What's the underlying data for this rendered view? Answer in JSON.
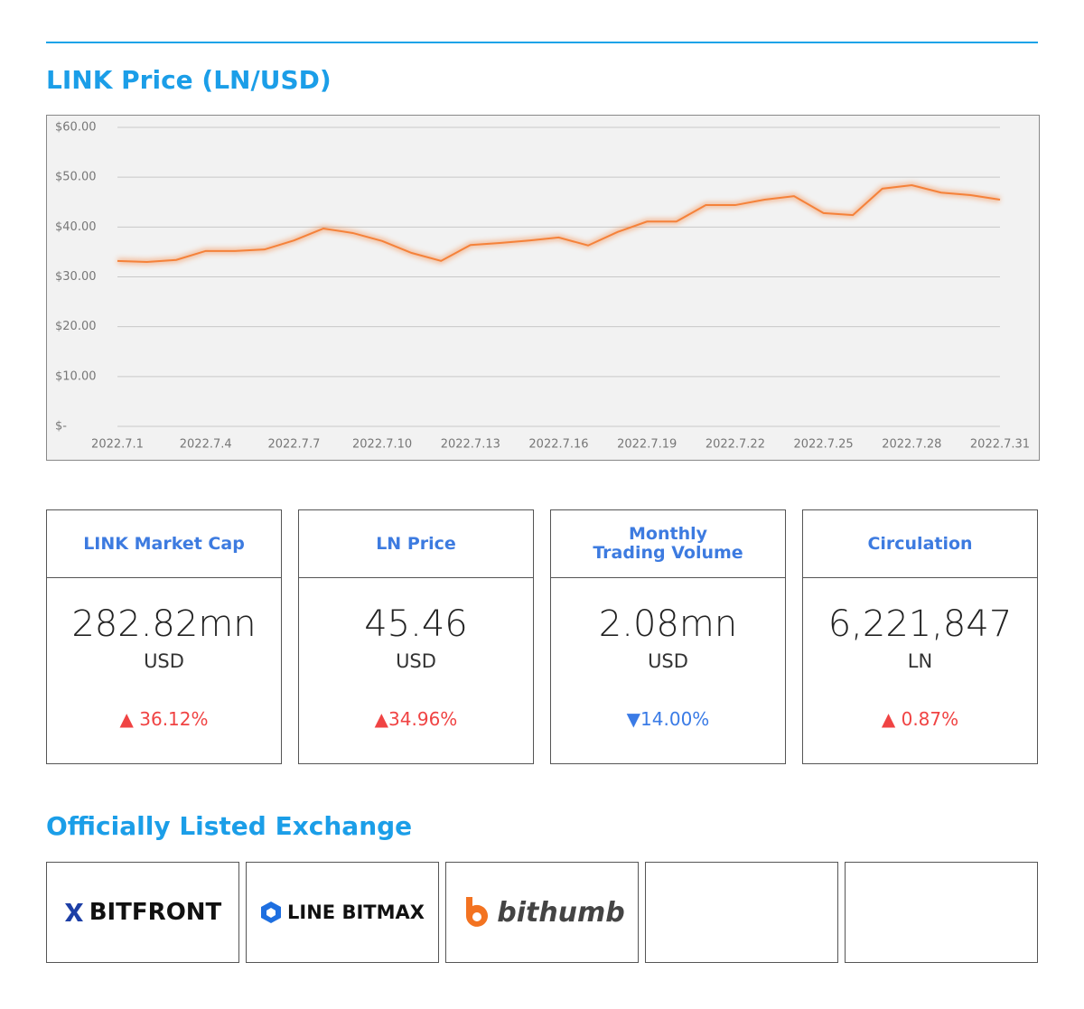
{
  "header": {
    "title": "LINK Price (LN/USD)"
  },
  "chart_data": {
    "type": "line",
    "categories": [
      "2022.7.1",
      null,
      null,
      "2022.7.4",
      null,
      null,
      "2022.7.7",
      null,
      null,
      "2022.7.10",
      null,
      null,
      "2022.7.13",
      null,
      null,
      "2022.7.16",
      null,
      null,
      "2022.7.19",
      null,
      null,
      "2022.7.22",
      null,
      null,
      "2022.7.25",
      null,
      null,
      "2022.7.28",
      null,
      null,
      "2022.7.31"
    ],
    "values": [
      33.2,
      33.0,
      33.4,
      35.2,
      35.2,
      35.5,
      37.3,
      39.7,
      38.8,
      37.2,
      34.8,
      33.2,
      36.4,
      36.8,
      37.3,
      37.9,
      36.3,
      39.0,
      41.1,
      41.1,
      44.4,
      44.4,
      45.5,
      46.2,
      42.8,
      42.4,
      47.7,
      48.4,
      46.9,
      46.4,
      45.5
    ],
    "color": "#f5823a",
    "ylim": [
      0,
      60
    ],
    "yticks": [
      {
        "value": 0,
        "label": "$-"
      },
      {
        "value": 10,
        "label": "$10.00"
      },
      {
        "value": 20,
        "label": "$20.00"
      },
      {
        "value": 30,
        "label": "$30.00"
      },
      {
        "value": 40,
        "label": "$40.00"
      },
      {
        "value": 50,
        "label": "$50.00"
      },
      {
        "value": 60,
        "label": "$60.00"
      }
    ],
    "grid": true
  },
  "stats": [
    {
      "label": "LINK Market Cap",
      "value": "282.82mn",
      "unit": "USD",
      "change": "▲ 36.12%",
      "color": "#f04343"
    },
    {
      "label": "LN Price",
      "value": "45.46",
      "unit": "USD",
      "change": "▲34.96%",
      "color": "#f04343"
    },
    {
      "label": "Monthly\nTrading Volume",
      "value": "2.08mn",
      "unit": "USD",
      "change": "▼14.00%",
      "color": "#3a7be6"
    },
    {
      "label": "Circulation",
      "value": "6,221,847",
      "unit": "LN",
      "change": "▲ 0.87%",
      "color": "#f04343"
    }
  ],
  "exchanges": {
    "title": "Officially Listed Exchange",
    "names": [
      "BITFRONT",
      "LINE BITMAX",
      "bithumb"
    ]
  }
}
